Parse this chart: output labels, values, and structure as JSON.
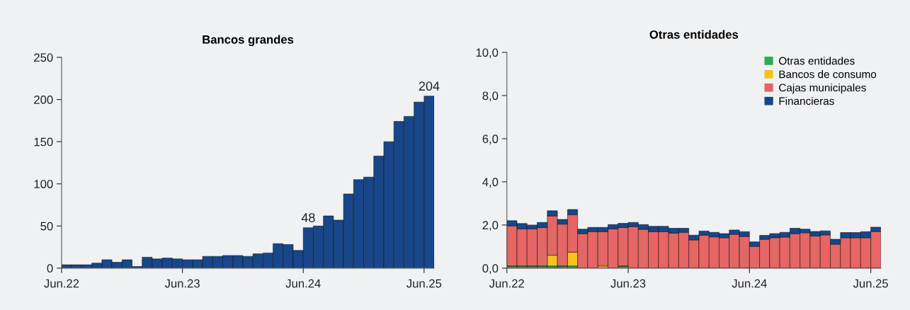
{
  "chart_data": [
    {
      "type": "bar",
      "title": "Bancos grandes",
      "categories": [
        "Jun.22",
        null,
        null,
        null,
        null,
        null,
        null,
        null,
        null,
        null,
        null,
        null,
        "Jun.23",
        null,
        null,
        null,
        null,
        null,
        null,
        null,
        null,
        null,
        null,
        null,
        "Jun.24",
        null,
        null,
        null,
        null,
        null,
        null,
        null,
        null,
        null,
        null,
        null,
        "Jun.25"
      ],
      "series": [
        {
          "color": "#17478a",
          "values": [
            4,
            4,
            4,
            6,
            10,
            7,
            10,
            2,
            13,
            11,
            12,
            11,
            10,
            10,
            14,
            14,
            15,
            15,
            14,
            17,
            18,
            29,
            28,
            21,
            48,
            50,
            62,
            57,
            88,
            105,
            108,
            133,
            150,
            174,
            180,
            197,
            204
          ],
          "value_labels": [
            null,
            null,
            null,
            null,
            null,
            null,
            null,
            null,
            null,
            null,
            null,
            null,
            null,
            null,
            null,
            null,
            null,
            null,
            null,
            null,
            null,
            null,
            null,
            null,
            "48",
            null,
            null,
            null,
            null,
            null,
            null,
            null,
            null,
            null,
            null,
            null,
            "204"
          ]
        }
      ],
      "ylim": [
        0,
        250
      ],
      "yticks": [
        0,
        50,
        100,
        150,
        200,
        250
      ],
      "grid": false,
      "legend": false
    },
    {
      "type": "bar",
      "title": "Otras entidades",
      "stacked": true,
      "categories": [
        "Jun.22",
        null,
        null,
        null,
        null,
        null,
        null,
        null,
        null,
        null,
        null,
        null,
        "Jun.23",
        null,
        null,
        null,
        null,
        null,
        null,
        null,
        null,
        null,
        null,
        null,
        "Jun.24",
        null,
        null,
        null,
        null,
        null,
        null,
        null,
        null,
        null,
        null,
        null,
        "Jun.25"
      ],
      "series": [
        {
          "name": "Otras entidades",
          "color": "#2fa85a",
          "values": [
            0.1,
            0.1,
            0.1,
            0.1,
            0.1,
            0.1,
            0.1,
            0,
            0,
            0,
            0,
            0.1,
            0,
            0,
            0,
            0,
            0,
            0,
            0,
            0,
            0,
            0,
            0,
            0,
            0,
            0,
            0,
            0,
            0,
            0,
            0,
            0,
            0,
            0,
            0,
            0,
            0
          ]
        },
        {
          "name": "Bancos de consumo",
          "color": "#f5c31e",
          "values": [
            0,
            0,
            0,
            0,
            0.5,
            0,
            0.64,
            0,
            0,
            0.1,
            0,
            0,
            0,
            0,
            0,
            0,
            0,
            0,
            0,
            0,
            0,
            0,
            0,
            0,
            0,
            0,
            0,
            0,
            0,
            0,
            0,
            0,
            0,
            0,
            0,
            0,
            0
          ]
        },
        {
          "name": "Cajas municipales",
          "color": "#e66565",
          "values": [
            1.86,
            1.72,
            1.72,
            1.78,
            1.82,
            1.94,
            1.74,
            1.6,
            1.69,
            1.59,
            1.82,
            1.78,
            1.92,
            1.8,
            1.69,
            1.69,
            1.62,
            1.66,
            1.31,
            1.53,
            1.45,
            1.41,
            1.57,
            1.47,
            1.01,
            1.34,
            1.41,
            1.44,
            1.6,
            1.64,
            1.49,
            1.54,
            1.11,
            1.41,
            1.41,
            1.41,
            1.7
          ]
        },
        {
          "name": "Financieras",
          "color": "#17478a",
          "values": [
            0.24,
            0.25,
            0.18,
            0.24,
            0.24,
            0.22,
            0.24,
            0.21,
            0.2,
            0.2,
            0.2,
            0.2,
            0.2,
            0.22,
            0.25,
            0.25,
            0.23,
            0.19,
            0.22,
            0.19,
            0.21,
            0.19,
            0.2,
            0.22,
            0.21,
            0.18,
            0.19,
            0.22,
            0.25,
            0.17,
            0.21,
            0.19,
            0.23,
            0.24,
            0.24,
            0.28,
            0.2
          ]
        }
      ],
      "ylim": [
        0,
        10
      ],
      "yticks": [
        {
          "value": 0,
          "label": "0,0"
        },
        {
          "value": 2,
          "label": "2,0"
        },
        {
          "value": 4,
          "label": "4,0"
        },
        {
          "value": 6,
          "label": "6,0"
        },
        {
          "value": 8,
          "label": "8,0"
        },
        {
          "value": 10,
          "label": "10,0"
        }
      ],
      "grid": false,
      "legend": "top right"
    }
  ]
}
